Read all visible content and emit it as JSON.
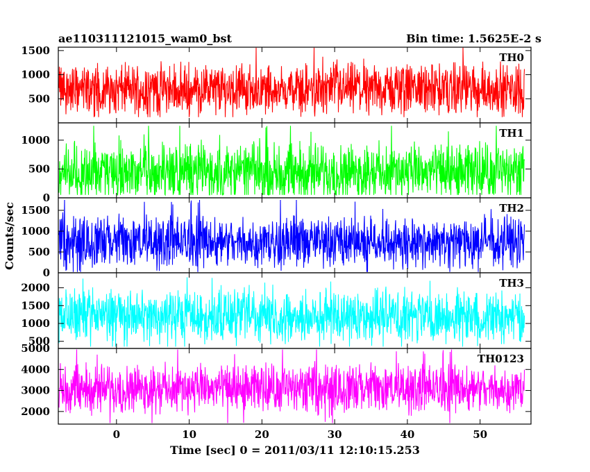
{
  "header": {
    "title_left": "ae110311121015_wam0_bst",
    "title_right": "Bin time: 1.5625E-2 s"
  },
  "axes": {
    "xlabel": "Time [sec] 0 = 2011/03/11 12:10:15.253",
    "ylabel": "Counts/sec"
  },
  "chart_data": [
    {
      "type": "line",
      "name": "TH0",
      "color": "#ff0000",
      "xlim": [
        -8.0,
        57.0
      ],
      "ylim": [
        0,
        1570
      ],
      "yticks": [
        500,
        1000,
        1500
      ],
      "xticks": [
        0,
        10,
        20,
        30,
        40,
        50
      ],
      "data_x_range": [
        -7.9,
        56.1
      ],
      "bin_time": 0.015625,
      "mean": 700,
      "min": 120,
      "max": 1560
    },
    {
      "type": "line",
      "name": "TH1",
      "color": "#00ff00",
      "xlim": [
        -8.0,
        57.0
      ],
      "ylim": [
        0,
        1300
      ],
      "yticks": [
        0,
        500,
        1000
      ],
      "xticks": [
        0,
        10,
        20,
        30,
        40,
        50
      ],
      "data_x_range": [
        -7.9,
        56.1
      ],
      "bin_time": 0.015625,
      "mean": 450,
      "min": 50,
      "max": 1250
    },
    {
      "type": "line",
      "name": "TH2",
      "color": "#0000ff",
      "xlim": [
        -8.0,
        57.0
      ],
      "ylim": [
        0,
        1800
      ],
      "yticks": [
        0,
        500,
        1000,
        1500
      ],
      "xticks": [
        0,
        10,
        20,
        30,
        40,
        50
      ],
      "data_x_range": [
        -7.9,
        56.1
      ],
      "bin_time": 0.015625,
      "mean": 750,
      "min": 20,
      "max": 1750
    },
    {
      "type": "line",
      "name": "TH3",
      "color": "#00ffff",
      "xlim": [
        -8.0,
        57.0
      ],
      "ylim": [
        300,
        2420
      ],
      "yticks": [
        500,
        1000,
        1500,
        2000
      ],
      "xticks": [
        0,
        10,
        20,
        30,
        40,
        50
      ],
      "data_x_range": [
        -7.9,
        56.1
      ],
      "bin_time": 0.015625,
      "mean": 1200,
      "min": 350,
      "max": 2380
    },
    {
      "type": "line",
      "name": "TH0123",
      "color": "#ff00ff",
      "xlim": [
        -8.0,
        57.0
      ],
      "ylim": [
        1400,
        5000
      ],
      "yticks": [
        2000,
        3000,
        4000,
        5000
      ],
      "xticks": [
        0,
        10,
        20,
        30,
        40,
        50
      ],
      "data_x_range": [
        -7.9,
        56.1
      ],
      "bin_time": 0.015625,
      "mean": 3100,
      "min": 1450,
      "max": 4950
    }
  ]
}
